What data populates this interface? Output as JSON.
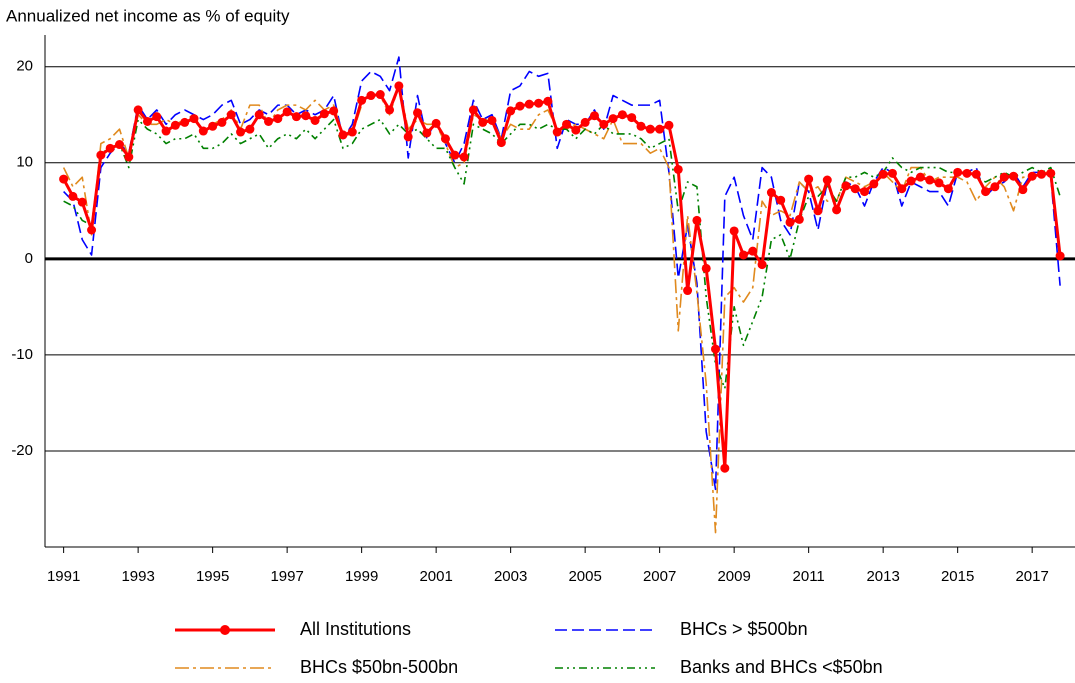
{
  "chart_data": {
    "type": "line",
    "title": "Annualized net income as % of equity",
    "x": [
      1991,
      1991.25,
      1991.5,
      1991.75,
      1992,
      1992.25,
      1992.5,
      1992.75,
      1993,
      1993.25,
      1993.5,
      1993.75,
      1994,
      1994.25,
      1994.5,
      1994.75,
      1995,
      1995.25,
      1995.5,
      1995.75,
      1996,
      1996.25,
      1996.5,
      1996.75,
      1997,
      1997.25,
      1997.5,
      1997.75,
      1998,
      1998.25,
      1998.5,
      1998.75,
      1999,
      1999.25,
      1999.5,
      1999.75,
      2000,
      2000.25,
      2000.5,
      2000.75,
      2001,
      2001.25,
      2001.5,
      2001.75,
      2002,
      2002.25,
      2002.5,
      2002.75,
      2003,
      2003.25,
      2003.5,
      2003.75,
      2004,
      2004.25,
      2004.5,
      2004.75,
      2005,
      2005.25,
      2005.5,
      2005.75,
      2006,
      2006.25,
      2006.5,
      2006.75,
      2007,
      2007.25,
      2007.5,
      2007.75,
      2008,
      2008.25,
      2008.5,
      2008.75,
      2009,
      2009.25,
      2009.5,
      2009.75,
      2010,
      2010.25,
      2010.5,
      2010.75,
      2011,
      2011.25,
      2011.5,
      2011.75,
      2012,
      2012.25,
      2012.5,
      2012.75,
      2013,
      2013.25,
      2013.5,
      2013.75,
      2014,
      2014.25,
      2014.5,
      2014.75,
      2015,
      2015.25,
      2015.5,
      2015.75,
      2016,
      2016.25,
      2016.5,
      2016.75,
      2017,
      2017.25,
      2017.5,
      2017.75
    ],
    "xlim": [
      1990.5,
      2018.15
    ],
    "xticks": [
      1991,
      1993,
      1995,
      1997,
      1999,
      2001,
      2003,
      2005,
      2007,
      2009,
      2011,
      2013,
      2015,
      2017
    ],
    "ylim": [
      -30,
      23.3
    ],
    "yticks": [
      20,
      10,
      0,
      -10,
      -20
    ],
    "grid": true,
    "series": [
      {
        "name": "All Institutions",
        "color": "#ff0000",
        "linestyle": "solid",
        "marker": true,
        "values": [
          8.3,
          6.5,
          5.9,
          3.0,
          10.8,
          11.5,
          11.9,
          10.6,
          15.5,
          14.3,
          14.8,
          13.3,
          13.9,
          14.2,
          14.6,
          13.3,
          13.8,
          14.2,
          15.0,
          13.2,
          13.5,
          15.0,
          14.3,
          14.6,
          15.3,
          14.8,
          14.9,
          14.4,
          15.1,
          15.4,
          12.9,
          13.2,
          16.5,
          17.0,
          17.1,
          15.5,
          18.0,
          12.7,
          15.2,
          13.1,
          14.1,
          12.5,
          10.8,
          10.6,
          15.5,
          14.2,
          14.4,
          12.1,
          15.4,
          15.9,
          16.1,
          16.2,
          16.4,
          13.2,
          14.0,
          13.4,
          14.2,
          14.9,
          14.0,
          14.6,
          15.0,
          14.7,
          13.8,
          13.5,
          13.5,
          13.9,
          9.3,
          -3.3,
          4.0,
          -1.0,
          -9.4,
          -21.8,
          2.9,
          0.4,
          0.8,
          -0.6,
          6.9,
          6.1,
          3.8,
          4.1,
          8.3,
          5.0,
          8.2,
          5.1,
          7.6,
          7.3,
          7.0,
          7.8,
          8.8,
          8.9,
          7.3,
          8.1,
          8.5,
          8.2,
          7.9,
          7.3,
          9.0,
          8.9,
          8.8,
          7.0,
          7.5,
          8.5,
          8.6,
          7.2,
          8.6,
          8.8,
          8.9,
          0.3
        ]
      },
      {
        "name": "BHCs > $500bn",
        "color": "#0000ff",
        "linestyle": "dashed",
        "marker": false,
        "values": [
          7.0,
          6.0,
          2.0,
          0.4,
          9.5,
          11.0,
          12.0,
          11.0,
          16.0,
          14.5,
          15.5,
          14.0,
          15.0,
          15.5,
          15.0,
          14.5,
          15.0,
          16.0,
          16.5,
          14.0,
          14.5,
          15.5,
          15.0,
          16.0,
          16.0,
          15.0,
          15.5,
          15.0,
          15.5,
          17.0,
          12.5,
          14.0,
          18.5,
          19.5,
          19.0,
          17.5,
          21.0,
          10.5,
          17.0,
          12.5,
          14.5,
          12.0,
          10.0,
          12.0,
          16.5,
          14.5,
          15.0,
          12.5,
          17.5,
          18.0,
          19.5,
          19.0,
          19.3,
          11.5,
          14.5,
          14.0,
          14.0,
          15.5,
          13.5,
          17.0,
          16.5,
          16.0,
          16.0,
          16.0,
          16.5,
          9.0,
          -2.0,
          3.5,
          -2.5,
          -18.0,
          -24.0,
          6.5,
          8.5,
          4.5,
          2.0,
          9.5,
          8.5,
          4.0,
          2.5,
          8.0,
          7.0,
          3.0,
          8.0,
          5.0,
          8.0,
          7.5,
          5.5,
          8.0,
          9.5,
          9.0,
          5.5,
          8.0,
          7.5,
          7.0,
          7.0,
          5.5,
          9.0,
          9.0,
          9.5,
          6.5,
          7.5,
          8.0,
          9.0,
          7.5,
          9.0,
          9.0,
          8.5,
          -2.8
        ]
      },
      {
        "name": "BHCs $50bn-500bn",
        "color": "#e08a1e",
        "linestyle": "dashdot",
        "marker": false,
        "values": [
          9.5,
          7.5,
          8.5,
          2.5,
          12.0,
          12.5,
          13.5,
          10.5,
          15.0,
          14.0,
          14.0,
          14.5,
          14.0,
          14.5,
          15.0,
          13.0,
          14.0,
          14.5,
          15.5,
          13.5,
          16.0,
          16.0,
          14.0,
          15.5,
          16.0,
          16.0,
          15.5,
          16.5,
          15.5,
          16.0,
          12.8,
          13.0,
          16.0,
          17.0,
          17.0,
          15.0,
          18.0,
          13.5,
          14.5,
          14.0,
          14.0,
          12.0,
          9.5,
          10.0,
          15.0,
          14.5,
          14.5,
          12.5,
          14.0,
          13.5,
          13.5,
          15.0,
          15.5,
          13.5,
          13.5,
          14.0,
          13.5,
          13.0,
          12.5,
          14.5,
          12.0,
          12.0,
          12.0,
          11.0,
          11.5,
          9.5,
          -7.5,
          4.5,
          -3.5,
          -13.0,
          -28.5,
          -4.0,
          -3.0,
          -4.5,
          -3.0,
          6.0,
          4.5,
          5.0,
          4.5,
          8.0,
          7.0,
          7.5,
          6.0,
          6.0,
          8.5,
          8.0,
          7.5,
          8.0,
          9.0,
          8.0,
          7.0,
          9.5,
          9.5,
          8.0,
          8.5,
          8.5,
          8.5,
          8.0,
          6.0,
          7.5,
          8.5,
          7.5,
          5.0,
          8.5,
          8.5,
          9.0,
          9.0,
          0.3
        ]
      },
      {
        "name": "Banks and BHCs <$50bn",
        "color": "#008000",
        "linestyle": "dashdotdot",
        "marker": false,
        "values": [
          6.0,
          5.5,
          4.0,
          3.5,
          11.0,
          11.5,
          12.0,
          9.5,
          14.5,
          13.5,
          13.0,
          12.0,
          12.5,
          12.5,
          13.0,
          11.5,
          11.5,
          12.0,
          13.0,
          12.0,
          12.5,
          13.0,
          11.5,
          12.5,
          13.0,
          12.5,
          13.5,
          12.5,
          13.5,
          14.5,
          11.5,
          12.0,
          13.5,
          14.0,
          14.5,
          13.0,
          14.0,
          13.0,
          13.5,
          12.5,
          11.5,
          11.5,
          9.5,
          7.8,
          14.0,
          13.5,
          13.0,
          12.0,
          13.0,
          14.0,
          14.0,
          13.5,
          14.0,
          13.5,
          13.5,
          12.5,
          13.5,
          13.0,
          14.0,
          13.0,
          13.0,
          13.0,
          12.5,
          11.5,
          12.0,
          12.5,
          5.0,
          8.0,
          7.5,
          -4.0,
          -11.0,
          -13.5,
          -5.0,
          -9.0,
          -6.5,
          -4.0,
          2.0,
          2.5,
          0.0,
          4.0,
          6.5,
          6.5,
          7.5,
          6.0,
          8.5,
          8.5,
          9.0,
          8.5,
          9.0,
          10.5,
          9.5,
          9.0,
          9.5,
          9.5,
          9.5,
          9.0,
          9.0,
          9.0,
          8.5,
          8.0,
          8.5,
          9.0,
          8.5,
          9.0,
          9.5,
          9.0,
          9.5,
          6.5
        ]
      }
    ]
  }
}
